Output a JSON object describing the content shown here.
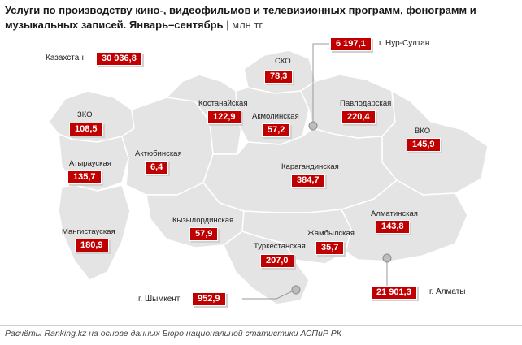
{
  "title": {
    "main": "Услуги по производству кино-, видеофильмов и телевизионных программ, фонограмм и музыкальных записей. Январь–сентябрь",
    "unit": "| млн тг"
  },
  "country": {
    "label": "Казахстан",
    "value": "30 936,8"
  },
  "regions": [
    {
      "id": "sko",
      "label": "СКО",
      "value": "78,3"
    },
    {
      "id": "kostanay",
      "label": "Костанайская",
      "value": "122,9"
    },
    {
      "id": "akmola",
      "label": "Акмолинская",
      "value": "57,2"
    },
    {
      "id": "pavlodar",
      "label": "Павлодарская",
      "value": "220,4"
    },
    {
      "id": "zko",
      "label": "ЗКО",
      "value": "108,5"
    },
    {
      "id": "vko",
      "label": "ВКО",
      "value": "145,9"
    },
    {
      "id": "atyrau",
      "label": "Атырауская",
      "value": "135,7"
    },
    {
      "id": "aktobe",
      "label": "Актюбинская",
      "value": "6,4"
    },
    {
      "id": "karaganda",
      "label": "Карагандинская",
      "value": "384,7"
    },
    {
      "id": "kyzylorda",
      "label": "Кызылординская",
      "value": "57,9"
    },
    {
      "id": "almaty_reg",
      "label": "Алматинская",
      "value": "143,8"
    },
    {
      "id": "mangystau",
      "label": "Мангистауская",
      "value": "180,9"
    },
    {
      "id": "zhambyl",
      "label": "Жамбылская",
      "value": "35,7"
    },
    {
      "id": "turkestan",
      "label": "Туркестанская",
      "value": "207,0"
    }
  ],
  "cities": [
    {
      "id": "nursultan",
      "label": "г. Нур-Султан",
      "value": "6 197,1"
    },
    {
      "id": "almaty",
      "label": "г. Алматы",
      "value": "21 901,3"
    },
    {
      "id": "shymkent",
      "label": "г. Шымкент",
      "value": "952,9"
    }
  ],
  "footer": "Расчёты Ranking.kz на основе данных Бюро национальной статистики АСПиР РК",
  "colors": {
    "accent": "#c00000",
    "map_fill": "#e4e4e4",
    "border": "#ffffff"
  }
}
